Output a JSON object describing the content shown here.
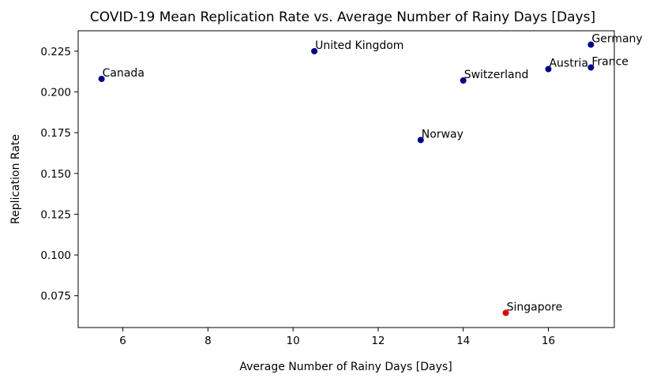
{
  "chart_data": {
    "type": "scatter",
    "title": "COVID-19 Mean Replication Rate vs. Average Number of Rainy Days [Days]",
    "xlabel": "Average Number of Rainy Days [Days]",
    "ylabel": "Replication Rate",
    "xlim": [
      4.95,
      17.55
    ],
    "ylim": [
      0.0555,
      0.2375
    ],
    "xticks": [
      6,
      8,
      10,
      12,
      14,
      16
    ],
    "yticks": [
      0.075,
      0.1,
      0.125,
      0.15,
      0.175,
      0.2,
      0.225
    ],
    "xtick_labels": [
      "6",
      "8",
      "10",
      "12",
      "14",
      "16"
    ],
    "ytick_labels": [
      "0.075",
      "0.100",
      "0.125",
      "0.150",
      "0.175",
      "0.200",
      "0.225"
    ],
    "grid": false,
    "colors": {
      "default": "#00008b",
      "highlight": "#e00000"
    },
    "points": [
      {
        "label": "Canada",
        "x": 5.5,
        "y": 0.208,
        "highlight": false
      },
      {
        "label": "United Kingdom",
        "x": 10.5,
        "y": 0.225,
        "highlight": false
      },
      {
        "label": "Germany",
        "x": 17.0,
        "y": 0.229,
        "highlight": false
      },
      {
        "label": "Austria",
        "x": 16.0,
        "y": 0.214,
        "highlight": false
      },
      {
        "label": "France",
        "x": 17.0,
        "y": 0.215,
        "highlight": false
      },
      {
        "label": "Switzerland",
        "x": 14.0,
        "y": 0.207,
        "highlight": false
      },
      {
        "label": "Norway",
        "x": 13.0,
        "y": 0.1705,
        "highlight": false
      },
      {
        "label": "Singapore",
        "x": 15.0,
        "y": 0.0645,
        "highlight": true
      }
    ]
  }
}
